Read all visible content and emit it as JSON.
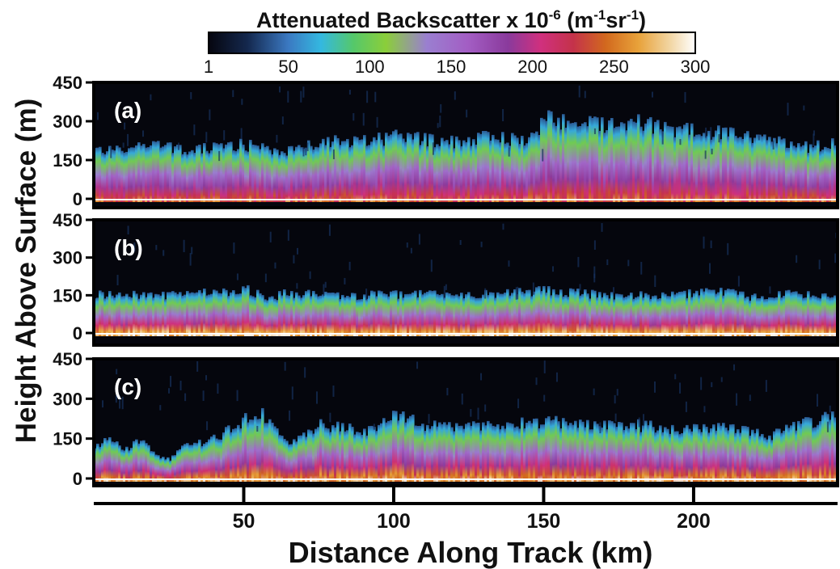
{
  "chart_data": {
    "type": "heatmap",
    "colorbar": {
      "title": "Attenuated Backscatter x 10",
      "title_exp": "-6",
      "title_units_open": " (m",
      "title_units_exp1": "-1",
      "title_units_mid": "sr",
      "title_units_exp2": "-1",
      "title_units_close": ")",
      "range": [
        1,
        300
      ],
      "ticks": [
        "1",
        "50",
        "100",
        "150",
        "200",
        "250",
        "300"
      ],
      "tick_values": [
        1,
        50,
        100,
        150,
        200,
        250,
        300
      ],
      "colormap": [
        {
          "v": 1,
          "c": "#06060f"
        },
        {
          "v": 25,
          "c": "#14284e"
        },
        {
          "v": 50,
          "c": "#3b79c2"
        },
        {
          "v": 70,
          "c": "#34b8e0"
        },
        {
          "v": 90,
          "c": "#55c86a"
        },
        {
          "v": 110,
          "c": "#8bce3a"
        },
        {
          "v": 135,
          "c": "#9a7fd0"
        },
        {
          "v": 160,
          "c": "#a35ec4"
        },
        {
          "v": 185,
          "c": "#8a3a9c"
        },
        {
          "v": 205,
          "c": "#d0307e"
        },
        {
          "v": 225,
          "c": "#c4324a"
        },
        {
          "v": 245,
          "c": "#d2691e"
        },
        {
          "v": 265,
          "c": "#e8a23a"
        },
        {
          "v": 285,
          "c": "#f2d7a6"
        },
        {
          "v": 300,
          "c": "#ffffff"
        }
      ]
    },
    "xlabel": "Distance Along Track (km)",
    "ylabel": "Height Above Surface (m)",
    "xlim": [
      0,
      248
    ],
    "x_ticks": [
      "50",
      "100",
      "150",
      "200"
    ],
    "x_tick_values": [
      50,
      100,
      150,
      200
    ],
    "y_ticks": [
      "0",
      "150",
      "300",
      "450"
    ],
    "y_tick_values": [
      0,
      150,
      300,
      450
    ],
    "ylim": [
      0,
      450
    ],
    "panels": [
      {
        "label": "(a)",
        "layer_top_km": [
          0,
          10,
          20,
          30,
          40,
          50,
          60,
          70,
          80,
          90,
          100,
          110,
          120,
          130,
          140,
          146,
          150,
          160,
          170,
          180,
          190,
          200,
          210,
          220,
          230,
          240,
          248
        ],
        "layer_top_m": [
          190,
          190,
          220,
          180,
          200,
          210,
          180,
          200,
          230,
          220,
          240,
          230,
          220,
          240,
          230,
          230,
          310,
          290,
          290,
          300,
          270,
          270,
          250,
          240,
          210,
          200,
          220
        ]
      },
      {
        "label": "(b)",
        "layer_top_km": [
          0,
          20,
          40,
          50,
          57,
          65,
          80,
          100,
          120,
          140,
          150,
          170,
          190,
          210,
          220,
          230,
          248
        ],
        "layer_top_m": [
          155,
          150,
          160,
          175,
          140,
          160,
          145,
          155,
          150,
          160,
          170,
          150,
          150,
          165,
          140,
          155,
          145
        ]
      },
      {
        "label": "(c)",
        "layer_top_km": [
          0,
          5,
          10,
          15,
          20,
          25,
          30,
          40,
          50,
          55,
          60,
          65,
          75,
          90,
          100,
          110,
          120,
          135,
          150,
          165,
          180,
          195,
          210,
          225,
          235,
          248
        ],
        "layer_top_m": [
          120,
          145,
          110,
          140,
          95,
          70,
          120,
          150,
          220,
          250,
          200,
          140,
          200,
          180,
          240,
          200,
          190,
          210,
          215,
          200,
          200,
          185,
          190,
          160,
          200,
          240
        ]
      }
    ]
  }
}
